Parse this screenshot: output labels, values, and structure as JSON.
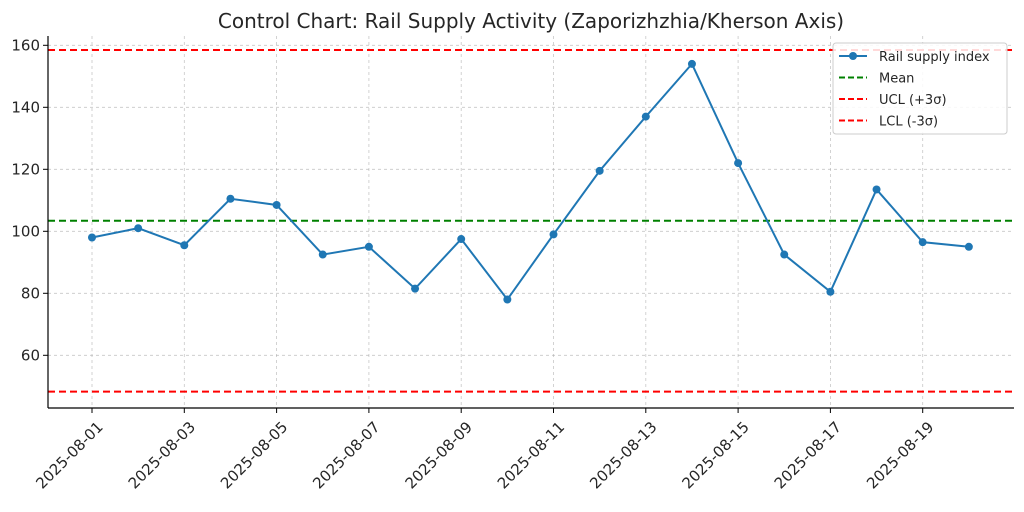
{
  "chart_data": {
    "type": "line",
    "title": "Control Chart: Rail Supply Activity (Zaporizhzhia/Kherson Axis)",
    "xlabel": "",
    "ylabel": "",
    "x": [
      "2025-08-01",
      "2025-08-02",
      "2025-08-03",
      "2025-08-04",
      "2025-08-05",
      "2025-08-06",
      "2025-08-07",
      "2025-08-08",
      "2025-08-09",
      "2025-08-10",
      "2025-08-11",
      "2025-08-12",
      "2025-08-13",
      "2025-08-14",
      "2025-08-15",
      "2025-08-16",
      "2025-08-17",
      "2025-08-18",
      "2025-08-19",
      "2025-08-20"
    ],
    "series": [
      {
        "name": "Rail supply index",
        "color": "#1f77b4",
        "values": [
          98.0,
          101.0,
          95.5,
          110.5,
          108.5,
          92.5,
          95.0,
          81.5,
          97.5,
          78.0,
          99.0,
          119.5,
          137.0,
          154.0,
          122.0,
          92.5,
          80.5,
          113.5,
          96.5,
          95.0
        ]
      }
    ],
    "reference_lines": [
      {
        "name": "Mean",
        "value": 103.4,
        "color": "#008000",
        "style": "dashed"
      },
      {
        "name": "UCL (+3σ)",
        "value": 158.5,
        "color": "#ff0000",
        "style": "dashed"
      },
      {
        "name": "LCL (-3σ)",
        "value": 48.3,
        "color": "#ff0000",
        "style": "dashed"
      }
    ],
    "ylim": [
      43,
      163
    ],
    "yticks": [
      60,
      80,
      100,
      120,
      140,
      160
    ],
    "xtick_labels": [
      "2025-08-01",
      "2025-08-03",
      "2025-08-05",
      "2025-08-07",
      "2025-08-09",
      "2025-08-11",
      "2025-08-13",
      "2025-08-15",
      "2025-08-17",
      "2025-08-19"
    ],
    "grid": true,
    "legend_position": "top-right"
  }
}
